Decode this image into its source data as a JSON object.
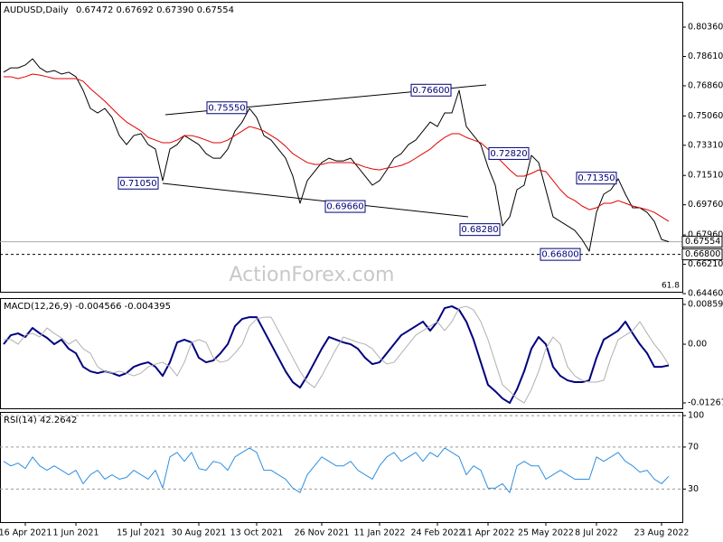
{
  "chart_data": [
    {
      "type": "line",
      "title": "AUDUSD,Daily",
      "subtitle": "0.67472 0.67692 0.67390 0.67554",
      "watermark": "ActionForex.com",
      "categories": [
        null,
        null,
        null,
        "16 Apr 2021",
        null,
        null,
        null,
        null,
        null,
        null,
        "1 Jun 2021",
        null,
        null,
        null,
        null,
        null,
        null,
        null,
        null,
        "15 Jul 2021",
        null,
        null,
        null,
        null,
        null,
        null,
        null,
        "30 Aug 2021",
        null,
        null,
        null,
        null,
        null,
        null,
        null,
        "13 Oct 2021",
        null,
        null,
        null,
        null,
        null,
        null,
        null,
        null,
        "26 Nov 2021",
        null,
        null,
        null,
        null,
        null,
        null,
        null,
        "11 Jan 2022",
        null,
        null,
        null,
        null,
        null,
        null,
        null,
        "24 Feb 2022",
        null,
        null,
        null,
        null,
        null,
        null,
        "11 Apr 2022",
        null,
        null,
        null,
        null,
        null,
        null,
        null,
        "25 May 2022",
        null,
        null,
        null,
        null,
        null,
        null,
        "8 Jul 2022",
        null,
        null,
        null,
        null,
        null,
        null,
        null,
        null,
        "23 Aug 2022",
        null
      ],
      "series": [
        {
          "color": "#000000",
          "values": [
            0.7767,
            0.7793,
            0.7793,
            0.781,
            0.7847,
            0.7793,
            0.7767,
            0.7777,
            0.7756,
            0.7767,
            0.774,
            0.7659,
            0.7551,
            0.7524,
            0.7551,
            0.7497,
            0.7389,
            0.7335,
            0.7389,
            0.74,
            0.7335,
            0.7308,
            0.712,
            0.7308,
            0.7335,
            0.7389,
            0.7362,
            0.7335,
            0.7281,
            0.7254,
            0.7254,
            0.7308,
            0.7416,
            0.747,
            0.7551,
            0.7497,
            0.7389,
            0.7362,
            0.7308,
            0.7254,
            0.7147,
            0.6985,
            0.712,
            0.7174,
            0.7228,
            0.7254,
            0.7238,
            0.7238,
            0.7254,
            0.7201,
            0.7147,
            0.7093,
            0.712,
            0.7184,
            0.7254,
            0.7281,
            0.7335,
            0.7362,
            0.7416,
            0.747,
            0.7443,
            0.7524,
            0.7524,
            0.7659,
            0.7443,
            0.7389,
            0.7335,
            0.7201,
            0.7093,
            0.685,
            0.6904,
            0.7066,
            0.7093,
            0.7271,
            0.7228,
            0.7066,
            0.6904,
            0.6877,
            0.685,
            0.6823,
            0.6769,
            0.6699,
            0.6931,
            0.7039,
            0.7066,
            0.7131,
            0.7039,
            0.6958,
            0.6958,
            0.6931,
            0.6877,
            0.6769,
            0.67554
          ]
        },
        {
          "color": "#e00000",
          "values": [
            0.774,
            0.774,
            0.7729,
            0.774,
            0.7756,
            0.775,
            0.774,
            0.7729,
            0.7729,
            0.7729,
            0.7729,
            0.7713,
            0.7669,
            0.7632,
            0.7594,
            0.7551,
            0.7508,
            0.747,
            0.7443,
            0.7416,
            0.7378,
            0.7362,
            0.7346,
            0.7346,
            0.7362,
            0.7389,
            0.7389,
            0.7378,
            0.7362,
            0.7346,
            0.7346,
            0.7362,
            0.7389,
            0.7416,
            0.7443,
            0.7432,
            0.7416,
            0.7389,
            0.7362,
            0.7325,
            0.7281,
            0.7254,
            0.7228,
            0.7217,
            0.7217,
            0.7228,
            0.7228,
            0.7228,
            0.7228,
            0.7217,
            0.7201,
            0.719,
            0.7184,
            0.7195,
            0.7201,
            0.7211,
            0.7228,
            0.7254,
            0.7281,
            0.7308,
            0.7346,
            0.7378,
            0.74,
            0.74,
            0.7378,
            0.7362,
            0.7346,
            0.7308,
            0.7271,
            0.7228,
            0.7184,
            0.7147,
            0.7147,
            0.7163,
            0.7184,
            0.7174,
            0.712,
            0.7066,
            0.7023,
            0.7001,
            0.6969,
            0.6947,
            0.6958,
            0.6985,
            0.6985,
            0.7001,
            0.6985,
            0.6969,
            0.6958,
            0.6947,
            0.6931,
            0.6904,
            0.6877
          ]
        }
      ],
      "ylim": [
        0.6457,
        0.8187
      ],
      "yticks": [
        {
          "value": 0.8036,
          "label": "0.80360"
        },
        {
          "value": 0.7861,
          "label": "0.78610"
        },
        {
          "value": 0.7686,
          "label": "0.76860"
        },
        {
          "value": 0.7506,
          "label": "0.75060"
        },
        {
          "value": 0.7331,
          "label": "0.73310"
        },
        {
          "value": 0.7151,
          "label": "0.71510"
        },
        {
          "value": 0.6976,
          "label": "0.69760"
        },
        {
          "value": 0.6796,
          "label": "0.67960"
        },
        {
          "value": 0.6621,
          "label": "0.66210"
        },
        {
          "value": 0.6446,
          "label": "0.64460"
        }
      ],
      "grid": false,
      "last_price": {
        "value": 0.67554,
        "label": "0.67554"
      },
      "support_line": {
        "value": 0.668,
        "label": "0.66800"
      },
      "annotations": [
        {
          "value": 0.7555,
          "label": "0.75550"
        },
        {
          "value": 0.766,
          "label": "0.76600"
        },
        {
          "value": 0.7105,
          "label": "0.71050"
        },
        {
          "value": 0.6966,
          "label": "0.69660"
        },
        {
          "value": 0.7282,
          "label": "0.72820"
        },
        {
          "value": 0.6828,
          "label": "0.68280"
        },
        {
          "value": 0.7135,
          "label": "0.71350"
        },
        {
          "value": 0.668,
          "label": "0.66800"
        }
      ],
      "fib_label": 61.8
    },
    {
      "type": "line",
      "title": "MACD(12,26,9) -0.004566 -0.004395",
      "series": [
        {
          "color": "#000080",
          "width": 2,
          "values": [
            0,
            0.00195,
            0.00234,
            0.00156,
            0.00351,
            0.00234,
            0.00137,
            0,
            0.00098,
            -0.00098,
            -0.00195,
            -0.00488,
            -0.00585,
            -0.00624,
            -0.00585,
            -0.00624,
            -0.00683,
            -0.00624,
            -0.00488,
            -0.00429,
            -0.0039,
            -0.00488,
            -0.00683,
            -0.0039,
            0.00039,
            0.00098,
            0.00039,
            -0.00293,
            -0.0039,
            -0.00351,
            -0.00195,
            0,
            0.0039,
            0.00546,
            0.00585,
            0.00585,
            0.00293,
            0,
            -0.00293,
            -0.00585,
            -0.00819,
            -0.00936,
            -0.00683,
            -0.0039,
            -0.00098,
            0.00156,
            0.00098,
            0.00039,
            0,
            -0.00098,
            -0.00293,
            -0.00429,
            -0.0039,
            -0.00195,
            0,
            0.00195,
            0.00293,
            0.0039,
            0.00488,
            0.00293,
            0.00488,
            0.0078,
            0.00819,
            0.00741,
            0.00488,
            0.00098,
            -0.0039,
            -0.00878,
            -0.01015,
            -0.01171,
            -0.01268,
            -0.00976,
            -0.00585,
            -0.00098,
            0.00156,
            0,
            -0.00488,
            -0.00683,
            -0.0078,
            -0.00819,
            -0.00819,
            -0.0078,
            -0.00293,
            0.00098,
            0.00195,
            0.00293,
            0.00488,
            0.00234,
            0,
            -0.00195,
            -0.00488,
            -0.00488,
            -0.00457
          ]
        },
        {
          "color": "#b0b0b0",
          "width": 1,
          "values": [
            0.001,
            0.001,
            0,
            0.00195,
            0.00234,
            0.00156,
            0.00351,
            0.00234,
            0.00137,
            0,
            0.00098,
            -0.00098,
            -0.00195,
            -0.00488,
            -0.00585,
            -0.00624,
            -0.00585,
            -0.00624,
            -0.00683,
            -0.00624,
            -0.00488,
            -0.00429,
            -0.0039,
            -0.00488,
            -0.00683,
            -0.0039,
            0.00039,
            0.00098,
            0.00039,
            -0.00293,
            -0.0039,
            -0.00351,
            -0.00195,
            0,
            0.0039,
            0.00546,
            0.00585,
            0.00585,
            0.00293,
            0,
            -0.00293,
            -0.00585,
            -0.00819,
            -0.00936,
            -0.00683,
            -0.0039,
            -0.00098,
            0.00156,
            0.00098,
            0.00039,
            0,
            -0.00098,
            -0.00293,
            -0.00429,
            -0.0039,
            -0.00195,
            0,
            0.00195,
            0.00293,
            0.0039,
            0.00488,
            0.00293,
            0.00488,
            0.0078,
            0.00819,
            0.00741,
            0.00488,
            0.00098,
            -0.0039,
            -0.00878,
            -0.01015,
            -0.01171,
            -0.01268,
            -0.00976,
            -0.00585,
            -0.00098,
            0.00156,
            0,
            -0.00488,
            -0.00683,
            -0.0078,
            -0.00819,
            -0.00819,
            -0.0078,
            -0.00293,
            0.00098,
            0.00195,
            0.00293,
            0.00488,
            0.00234,
            0,
            -0.00195,
            -0.0044
          ]
        }
      ],
      "ylim": [
        -0.01384,
        0.00996
      ],
      "yticks": [
        0.008596,
        {
          "value": 0,
          "label": "0.00"
        },
        -0.01267
      ],
      "grid": false
    },
    {
      "type": "line",
      "title": "RSI(14) 42.2642",
      "series": [
        {
          "color": "#2f8fe0",
          "width": 1,
          "values": [
            56.4,
            52.1,
            54.7,
            49.6,
            60.6,
            52.1,
            47.9,
            52.1,
            47.9,
            43.6,
            47.9,
            35.1,
            43.6,
            47.9,
            39.4,
            43.6,
            39.4,
            41.1,
            47.9,
            43.6,
            39.4,
            47.9,
            30.9,
            60.6,
            64.9,
            56.4,
            64.9,
            49.6,
            47.9,
            56.4,
            54.7,
            47.9,
            60.6,
            64.9,
            69.1,
            64.9,
            47.9,
            47.9,
            43.6,
            39.4,
            30.9,
            26.6,
            43.6,
            52.1,
            60.6,
            56.4,
            52.1,
            52.1,
            56.4,
            47.9,
            43.6,
            39.4,
            52.1,
            60.6,
            64.9,
            56.4,
            60.6,
            64.9,
            56.4,
            64.9,
            60.6,
            69.1,
            64.9,
            60.6,
            43.6,
            52.1,
            47.9,
            30.9,
            30.9,
            35.1,
            26.6,
            52.1,
            56.4,
            52.1,
            52.1,
            39.4,
            43.6,
            47.9,
            43.6,
            39.4,
            39.4,
            39.4,
            60.6,
            56.4,
            60.6,
            64.9,
            56.4,
            52.1,
            46.2,
            47.9,
            39.4,
            35.1,
            42.26
          ]
        }
      ],
      "ylim": [
        -1.5,
        103.5
      ],
      "yticks": [
        30,
        70,
        100
      ],
      "grid": true
    }
  ]
}
